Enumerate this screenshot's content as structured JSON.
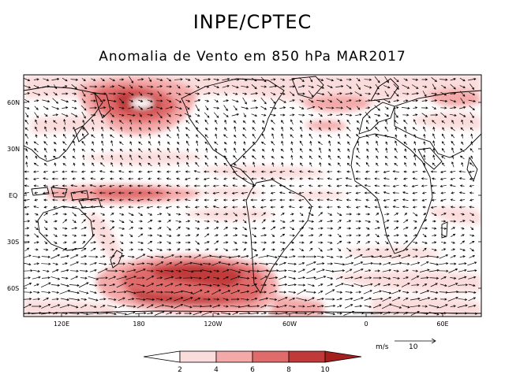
{
  "header": {
    "title": "INPE/CPTEC",
    "subtitle": "Anomalia de Vento em 850 hPa MAR2017"
  },
  "map": {
    "lat_labels": [
      "60N",
      "30N",
      "EQ",
      "30S",
      "60S"
    ],
    "lon_labels": [
      "120E",
      "180",
      "120W",
      "60W",
      "0",
      "60E"
    ]
  },
  "reference_vector": {
    "units": "m/s",
    "value": "10"
  },
  "colorbar": {
    "ticks": [
      "2",
      "4",
      "6",
      "8",
      "10"
    ],
    "colors": [
      "#ffffff",
      "#fbdcdc",
      "#f4a9a9",
      "#e06b6b",
      "#c13a3a",
      "#a51f1f"
    ]
  }
}
